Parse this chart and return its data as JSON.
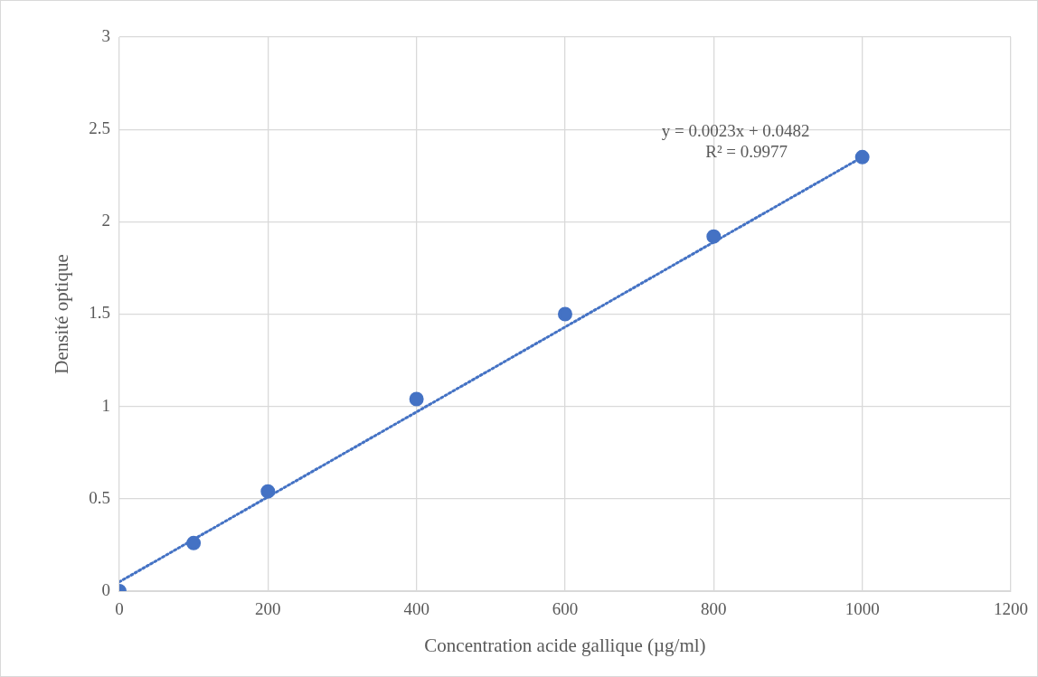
{
  "chart_data": {
    "type": "scatter",
    "xlabel": "Concentration acide gallique (µg/ml)",
    "ylabel": "Densité optique",
    "xlim": [
      0,
      1200
    ],
    "xticks": [
      0,
      200,
      400,
      600,
      800,
      1000,
      1200
    ],
    "ylim": [
      0,
      3
    ],
    "yticks": [
      0,
      0.5,
      1,
      1.5,
      2,
      2.5,
      3
    ],
    "grid": true,
    "legend": false,
    "series": [
      {
        "type": "scatter",
        "color": "#4472c4",
        "marker": "circle",
        "x": [
          0,
          100,
          200,
          400,
          600,
          800,
          1000
        ],
        "values": [
          0,
          0.26,
          0.54,
          1.04,
          1.5,
          1.92,
          2.35
        ]
      },
      {
        "type": "line",
        "color": "#4472c4",
        "marker": "none",
        "line_style": "dotted",
        "x": [
          0,
          1000
        ],
        "values": [
          0.05,
          2.35
        ]
      }
    ],
    "annotations": [
      "y = 0.0023x + 0.0482",
      "R² = 0.9977"
    ]
  }
}
